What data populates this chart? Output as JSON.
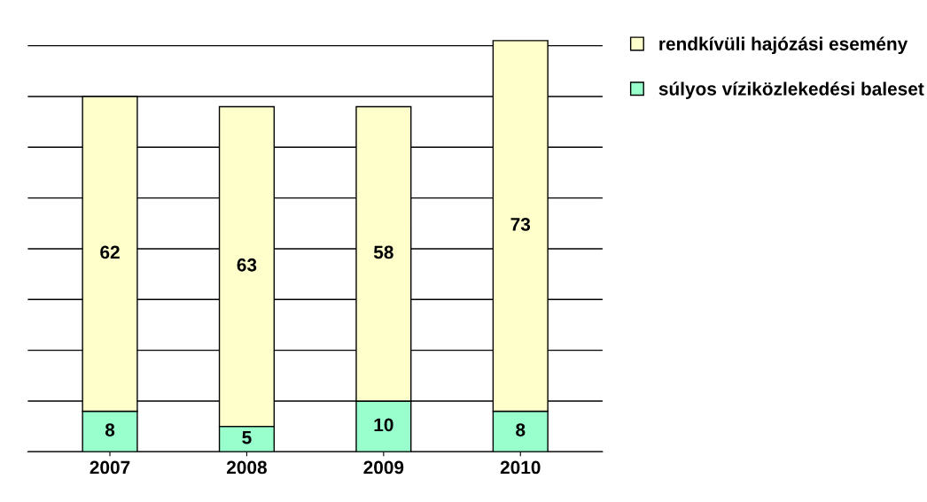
{
  "chart_data": {
    "type": "bar",
    "stacked": true,
    "categories": [
      "2007",
      "2008",
      "2009",
      "2010"
    ],
    "series": [
      {
        "name": "súlyos víziközlekedési baleset",
        "color": "#99ffcc",
        "values": [
          8,
          5,
          10,
          8
        ]
      },
      {
        "name": "rendkívüli hajózási esemény",
        "color": "#ffffcc",
        "values": [
          62,
          63,
          58,
          73
        ]
      }
    ],
    "data_labels": true,
    "grid": "y",
    "legend": "right",
    "tick_labels": "x"
  }
}
